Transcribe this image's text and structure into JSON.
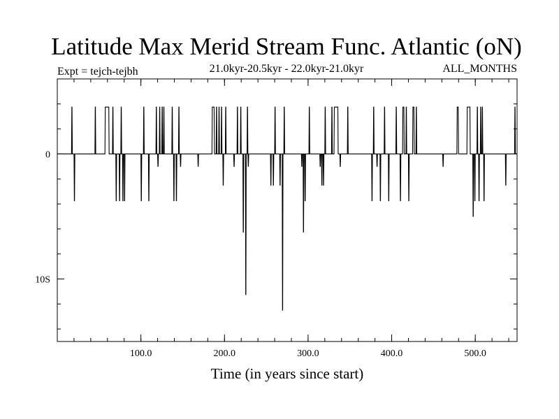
{
  "chart_data": {
    "type": "line",
    "title": "Latitude Max Merid Stream Func. Atlantic (oN)",
    "subtitle_left": "Expt = tejch-tejbh",
    "subtitle_center": "21.0kyr-20.5kyr - 22.0kyr-21.0kyr",
    "subtitle_right": "ALL_MONTHS",
    "xlabel": "Time (in years since start)",
    "ylabel": "",
    "xlim": [
      0,
      550
    ],
    "ylim": [
      -15,
      6
    ],
    "x_ticks": [
      {
        "value": 100,
        "label": "100.0"
      },
      {
        "value": 200,
        "label": "200.0"
      },
      {
        "value": 300,
        "label": "300.0"
      },
      {
        "value": 400,
        "label": "400.0"
      },
      {
        "value": 500,
        "label": "500.0"
      }
    ],
    "y_ticks": [
      {
        "value": 0,
        "label": "0"
      },
      {
        "value": -10,
        "label": "10S"
      }
    ],
    "minor_y_step": 2,
    "minor_x_step": 20,
    "baseline": 0,
    "series": [
      {
        "name": "tejch-tejbh",
        "color": "#000000",
        "spike_value": 3.75,
        "intervals": [
          [
            17,
            18,
            3.75
          ],
          [
            20,
            21,
            -3.75
          ],
          [
            45,
            46,
            3.75
          ],
          [
            57,
            62,
            3.75
          ],
          [
            66,
            67,
            3.75
          ],
          [
            70,
            71,
            -3.75
          ],
          [
            74,
            75,
            -3.75
          ],
          [
            76,
            77,
            3.75
          ],
          [
            78,
            79,
            -3.75
          ],
          [
            80,
            81,
            -3.75
          ],
          [
            100,
            101,
            -3.75
          ],
          [
            103,
            104,
            3.75
          ],
          [
            109,
            110,
            -3.75
          ],
          [
            118,
            119,
            3.75
          ],
          [
            120,
            121,
            -1.0
          ],
          [
            122,
            123,
            3.75
          ],
          [
            125,
            126,
            3.75
          ],
          [
            127,
            128,
            3.75
          ],
          [
            137,
            138,
            3.75
          ],
          [
            139,
            140,
            -3.75
          ],
          [
            142,
            143,
            -3.75
          ],
          [
            145,
            146,
            3.75
          ],
          [
            147,
            148,
            -1.0
          ],
          [
            168,
            169,
            -1.0
          ],
          [
            185,
            188,
            3.75
          ],
          [
            190,
            191,
            3.75
          ],
          [
            193,
            194,
            3.75
          ],
          [
            196,
            197,
            3.75
          ],
          [
            198,
            199,
            -2.5
          ],
          [
            201,
            202,
            3.75
          ],
          [
            211,
            212,
            -1.0
          ],
          [
            215,
            216,
            3.75
          ],
          [
            219,
            220,
            3.75
          ],
          [
            222,
            223,
            -6.25
          ],
          [
            225,
            226,
            -11.25
          ],
          [
            227,
            228,
            3.75
          ],
          [
            228,
            229,
            -1.0
          ],
          [
            255,
            256,
            -2.5
          ],
          [
            258,
            259,
            -2.5
          ],
          [
            260,
            261,
            3.75
          ],
          [
            266,
            267,
            -2.5
          ],
          [
            269,
            270,
            -12.5
          ],
          [
            271,
            272,
            3.75
          ],
          [
            292,
            293,
            -1.0
          ],
          [
            294,
            295,
            -6.25
          ],
          [
            296,
            297,
            -3.75
          ],
          [
            301,
            302,
            3.75
          ],
          [
            314,
            315,
            -1.0
          ],
          [
            316,
            317,
            -2.5
          ],
          [
            318,
            319,
            -2.5
          ],
          [
            320,
            321,
            3.75
          ],
          [
            328,
            329,
            3.75
          ],
          [
            331,
            336,
            3.75
          ],
          [
            338,
            339,
            -1.0
          ],
          [
            347,
            348,
            3.75
          ],
          [
            376,
            377,
            -3.75
          ],
          [
            378,
            379,
            3.75
          ],
          [
            382,
            383,
            -1.0
          ],
          [
            386,
            387,
            -3.75
          ],
          [
            391,
            392,
            3.75
          ],
          [
            396,
            397,
            -3.75
          ],
          [
            405,
            406,
            3.75
          ],
          [
            410,
            411,
            -3.75
          ],
          [
            413,
            415,
            3.75
          ],
          [
            417,
            418,
            3.75
          ],
          [
            420,
            421,
            -3.75
          ],
          [
            425,
            427,
            3.75
          ],
          [
            429,
            430,
            3.75
          ],
          [
            461,
            462,
            -1.0
          ],
          [
            478,
            480,
            3.75
          ],
          [
            490,
            494,
            3.75
          ],
          [
            497,
            498,
            -5.0
          ],
          [
            499,
            500,
            -3.75
          ],
          [
            502,
            503,
            3.75
          ],
          [
            504,
            505,
            -3.75
          ],
          [
            506,
            507,
            3.75
          ],
          [
            508,
            509,
            3.75
          ],
          [
            510,
            511,
            -3.75
          ],
          [
            536,
            537,
            -2.5
          ],
          [
            547,
            548,
            3.75
          ]
        ]
      }
    ]
  }
}
